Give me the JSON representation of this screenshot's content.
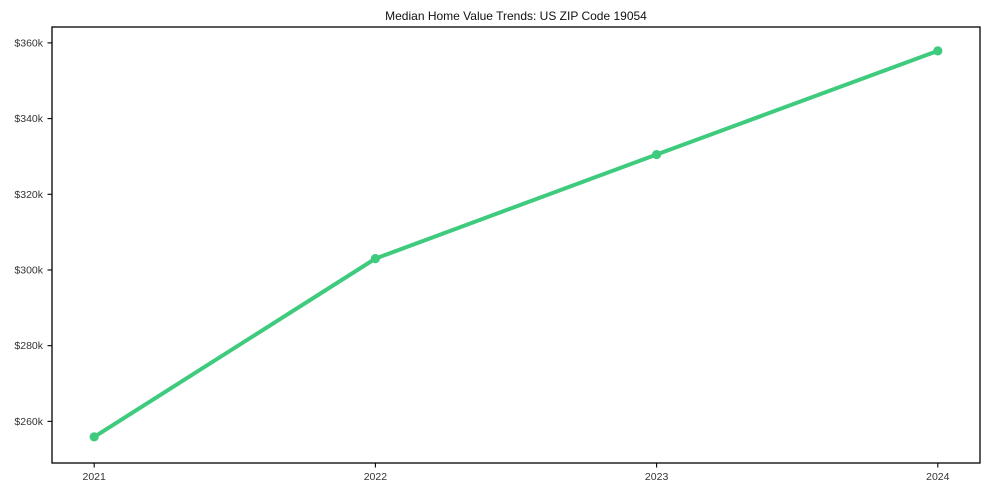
{
  "chart_data": {
    "type": "line",
    "title": "Median Home Value Trends: US ZIP Code 19054",
    "xlabel": "",
    "ylabel": "",
    "x": [
      2021,
      2022,
      2023,
      2024
    ],
    "x_tick_labels": [
      "2021",
      "2022",
      "2023",
      "2024"
    ],
    "series": [
      {
        "name": "Median Home Value",
        "values": [
          255900,
          303000,
          330500,
          357900
        ]
      }
    ],
    "y_tick_values": [
      260000,
      280000,
      300000,
      320000,
      340000,
      360000
    ],
    "y_tick_labels": [
      "$260k",
      "$280k",
      "$300k",
      "$320k",
      "$340k",
      "$360k"
    ],
    "xlim": [
      2020.85,
      2024.15
    ],
    "ylim": [
      249000,
      364200
    ],
    "grid": false,
    "legend_position": "none",
    "line_color": "#3ecb7d",
    "marker": "circle",
    "frame_color": "#000000",
    "title_color": "#111111",
    "tick_color": "#333333"
  }
}
